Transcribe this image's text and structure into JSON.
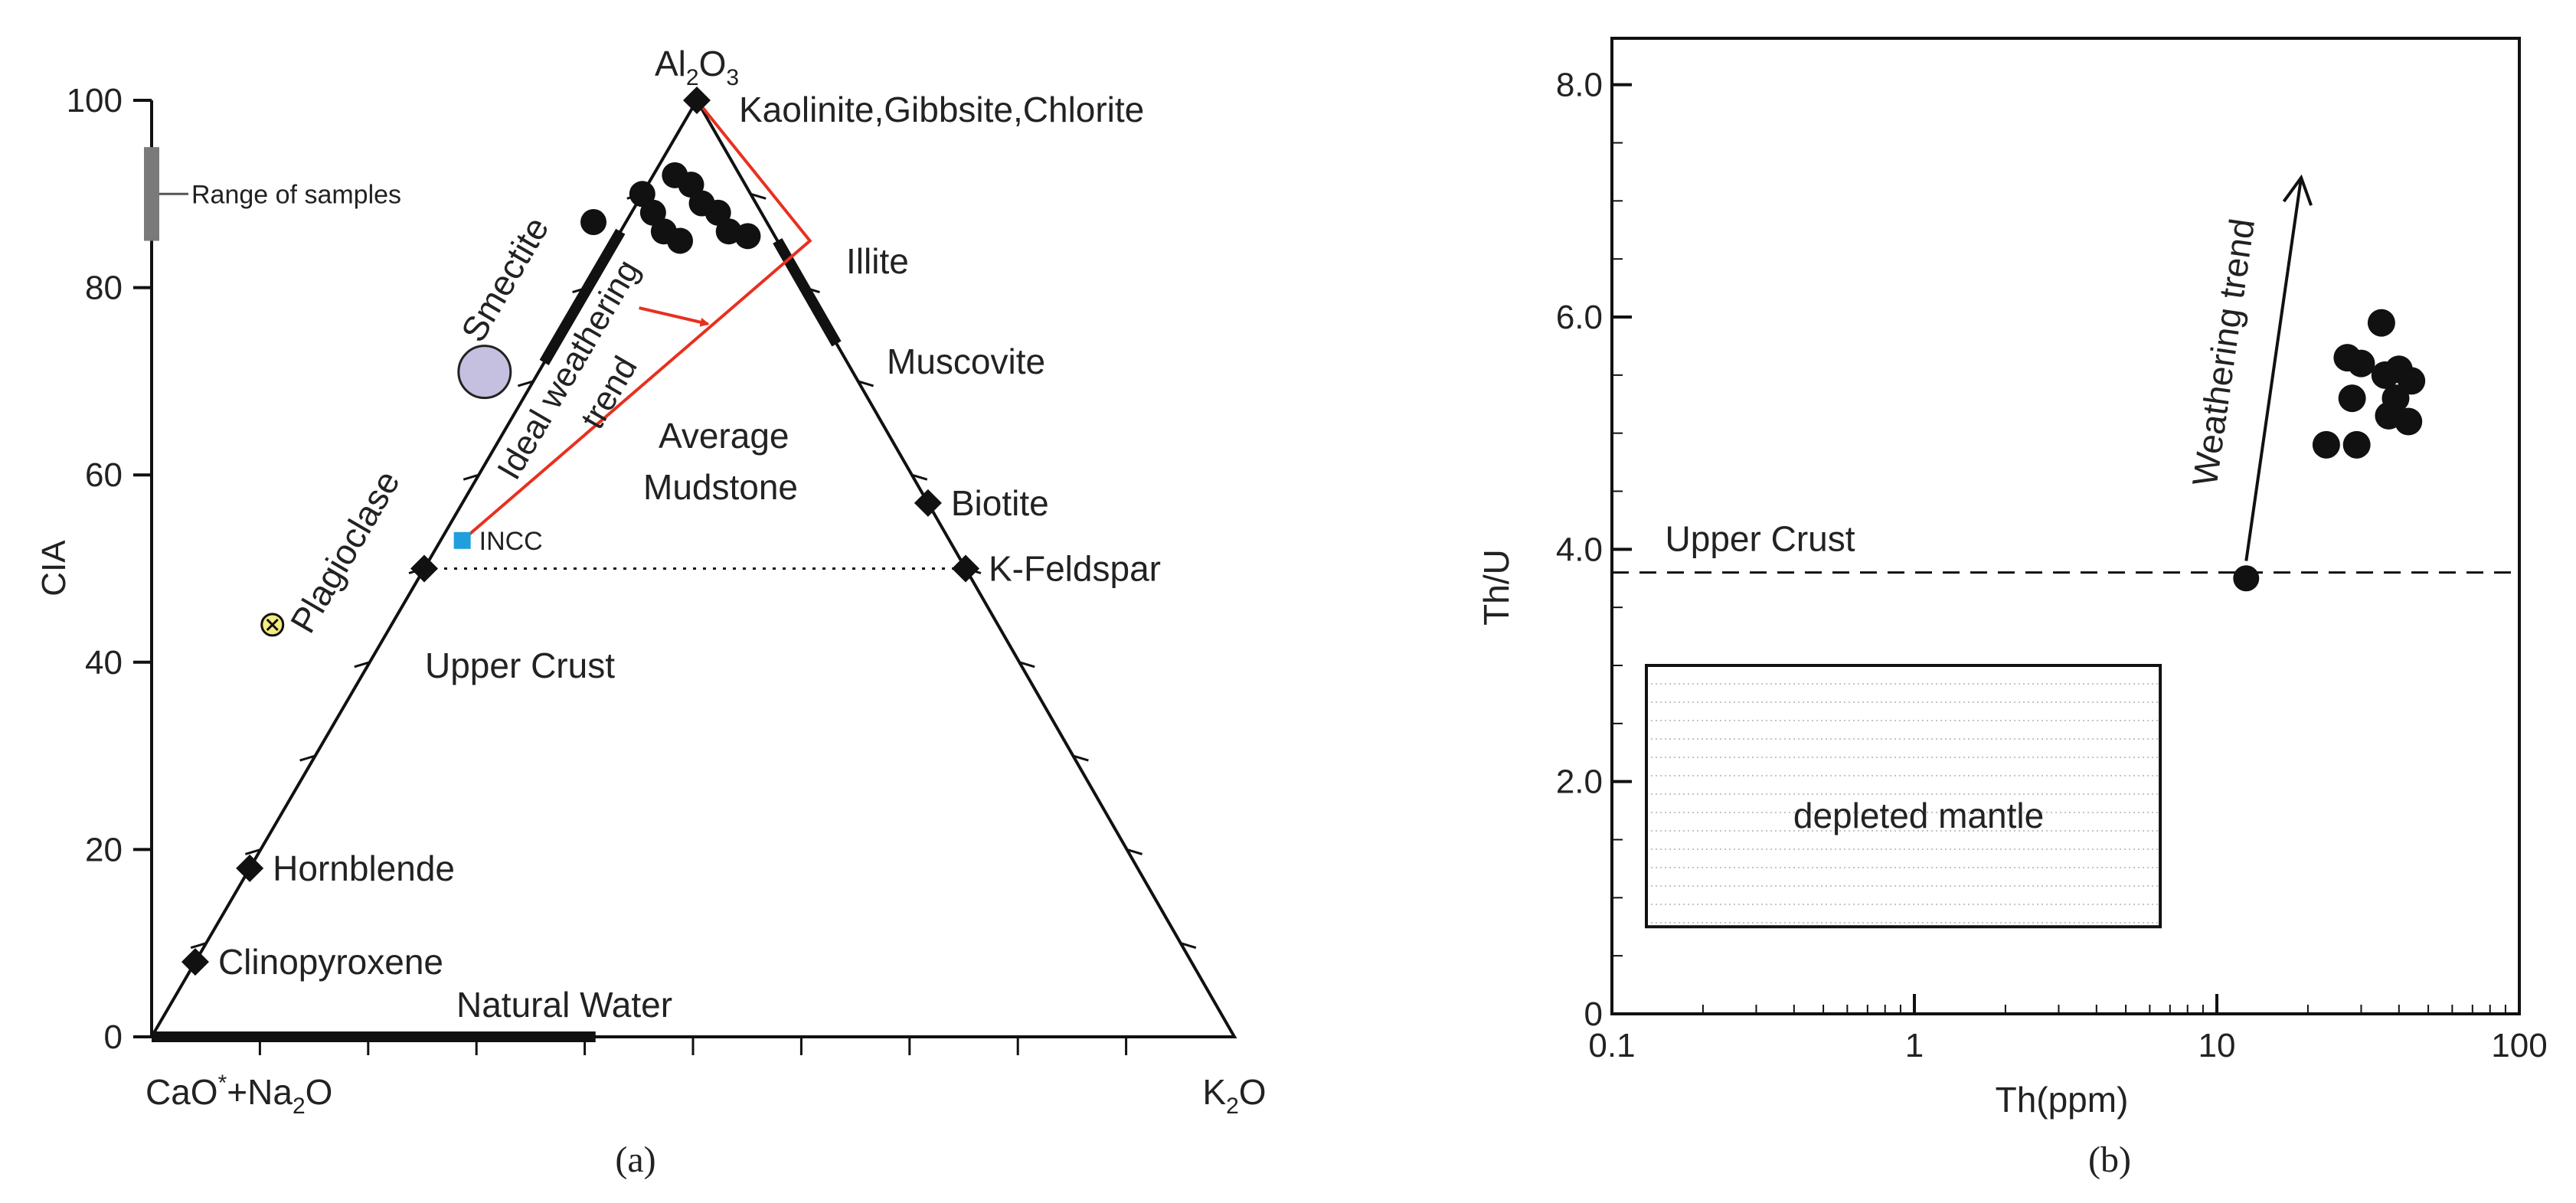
{
  "chart_data": [
    {
      "panel": "(a)",
      "type": "scatter",
      "subtype": "ternary",
      "vertices": {
        "top": "Al2O3",
        "left": "CaO*+Na2O",
        "right": "K2O"
      },
      "ylabel": "CIA",
      "ylim": [
        0,
        100
      ],
      "yticks": [
        0,
        20,
        40,
        60,
        80,
        100
      ],
      "mineral_points": [
        {
          "label": "Kaolinite,Gibbsite,Chlorite",
          "cia": 100,
          "k_frac": 0.0
        },
        {
          "label": "Biotite",
          "cia": 57,
          "k_frac": 0.43
        },
        {
          "label": "K-Feldspar",
          "cia": 50,
          "k_frac": 0.5
        },
        {
          "label": "",
          "cia": 50,
          "k_frac": 0.0
        },
        {
          "label": "Hornblende",
          "cia": 18,
          "k_frac": 0.0
        },
        {
          "label": "Clinopyroxene",
          "cia": 8,
          "k_frac": 0.0
        }
      ],
      "range_bars": [
        {
          "label": "Smectite",
          "edge": "left",
          "cia_from": 72,
          "cia_to": 86
        },
        {
          "label": "Illite",
          "edge": "right",
          "cia_from": 74,
          "cia_to": 85
        },
        {
          "label": "Natural Water",
          "edge": "base",
          "k_from": 0.0,
          "k_to": 0.41
        }
      ],
      "edge_labels": {
        "plagioclase": "Plagioclase",
        "muscovite": "Muscovite"
      },
      "special_points": [
        {
          "label": "INCC",
          "cia": 53,
          "k_frac": 0.02
        },
        {
          "label": "Upper Crust",
          "cia": 44,
          "k_frac": -0.11
        },
        {
          "label": "Average Mudstone",
          "cia": 71,
          "k_frac": -0.05
        }
      ],
      "weathering_trend": {
        "label_line1": "Ideal weathering",
        "label_line2": "trend",
        "path": [
          {
            "cia": 53,
            "k_frac": 0.02
          },
          {
            "cia": 85,
            "k_frac": 0.18
          },
          {
            "cia": 100,
            "k_frac": 0.0
          }
        ]
      },
      "samples": [
        {
          "cia": 92,
          "k_frac": 0.02
        },
        {
          "cia": 91,
          "k_frac": 0.04
        },
        {
          "cia": 90,
          "k_frac": 0.0
        },
        {
          "cia": 89,
          "k_frac": 0.06
        },
        {
          "cia": 88,
          "k_frac": 0.02
        },
        {
          "cia": 88,
          "k_frac": 0.08
        },
        {
          "cia": 87,
          "k_frac": -0.03
        },
        {
          "cia": 86,
          "k_frac": 0.04
        },
        {
          "cia": 86,
          "k_frac": 0.1
        },
        {
          "cia": 85,
          "k_frac": 0.06
        },
        {
          "cia": 85.5,
          "k_frac": 0.12
        }
      ],
      "legend": {
        "label": "Range of samples",
        "cia_from": 85,
        "cia_to": 95
      },
      "reference_line": {
        "cia": 50,
        "style": "dotted"
      }
    },
    {
      "panel": "(b)",
      "type": "scatter",
      "xlabel": "Th(ppm)",
      "ylabel": "Th/U",
      "xscale": "log",
      "xlim": [
        0.1,
        100
      ],
      "ylim": [
        0,
        8.4
      ],
      "xticks": [
        "0.1",
        "1",
        "10",
        "100"
      ],
      "yticks": [
        "0",
        "2.0",
        "4.0",
        "6.0",
        "8.0"
      ],
      "reference_line": {
        "label": "Upper Crust",
        "y": 3.8,
        "style": "dashed"
      },
      "upper_crust_point": {
        "x": 12.5,
        "y": 3.75
      },
      "box": {
        "label": "depleted mantle",
        "x": [
          0.13,
          6.5
        ],
        "y": [
          0.75,
          3.0
        ]
      },
      "arrow": {
        "label": "Weathering trend",
        "from": {
          "x": 12.5,
          "y": 3.9
        },
        "to": {
          "x": 19,
          "y": 7.2
        }
      },
      "samples": [
        {
          "x": 35,
          "y": 5.95
        },
        {
          "x": 27,
          "y": 5.65
        },
        {
          "x": 30,
          "y": 5.6
        },
        {
          "x": 40,
          "y": 5.55
        },
        {
          "x": 36,
          "y": 5.5
        },
        {
          "x": 44,
          "y": 5.45
        },
        {
          "x": 28,
          "y": 5.3
        },
        {
          "x": 39,
          "y": 5.3
        },
        {
          "x": 37,
          "y": 5.15
        },
        {
          "x": 43,
          "y": 5.1
        },
        {
          "x": 23,
          "y": 4.9
        },
        {
          "x": 29,
          "y": 4.9
        }
      ]
    }
  ]
}
